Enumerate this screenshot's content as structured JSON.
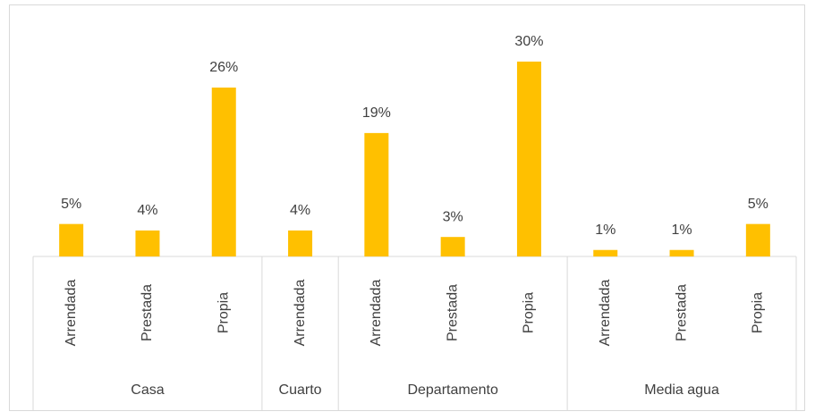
{
  "chart_data": {
    "type": "bar",
    "color": "#ffc000",
    "groups": [
      {
        "name": "Casa",
        "categories": [
          "Arrendada",
          "Prestada",
          "Propia"
        ],
        "values": [
          5,
          4,
          26
        ],
        "value_labels": [
          "5%",
          "4%",
          "26%"
        ]
      },
      {
        "name": "Cuarto",
        "categories": [
          "Arrendada"
        ],
        "values": [
          4
        ],
        "value_labels": [
          "4%"
        ]
      },
      {
        "name": "Departamento",
        "categories": [
          "Arrendada",
          "Prestada",
          "Propia"
        ],
        "values": [
          19,
          3,
          30
        ],
        "value_labels": [
          "19%",
          "3%",
          "30%"
        ]
      },
      {
        "name": "Media agua",
        "categories": [
          "Arrendada",
          "Prestada",
          "Propia"
        ],
        "values": [
          1,
          1,
          5
        ],
        "value_labels": [
          "1%",
          "1%",
          "5%"
        ]
      }
    ]
  }
}
